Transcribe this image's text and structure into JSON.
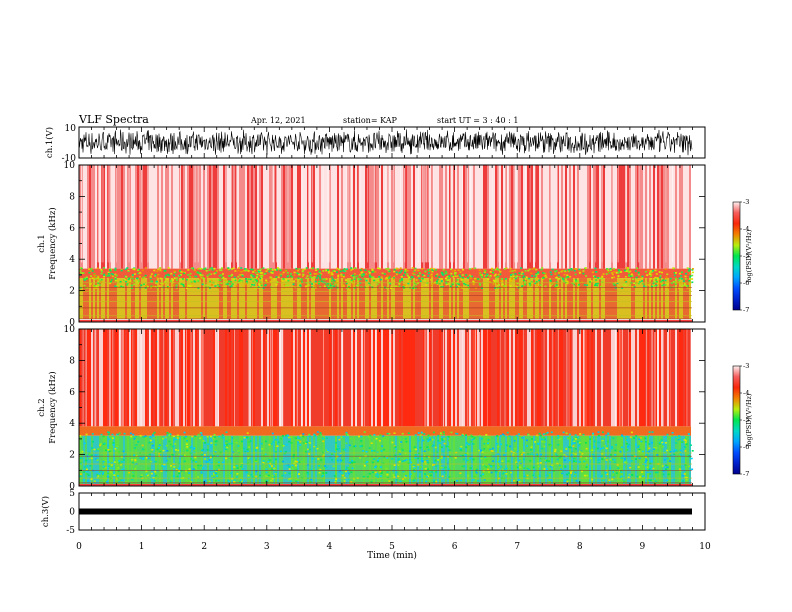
{
  "header": {
    "title": "VLF Spectra",
    "date": "Apr. 12, 2021",
    "station": "station= KAP",
    "start": "start  UT  =   3  : 40 : 1"
  },
  "chart_data": [
    {
      "type": "line",
      "panel": "ch1-waveform",
      "ylabel": "ch.1(V)",
      "ylim": [
        -10,
        10
      ],
      "yticks": [
        "10",
        "-10"
      ],
      "xlim": [
        0,
        10
      ]
    },
    {
      "type": "heatmap",
      "panel": "ch1-spectrogram",
      "ylabel": "ch.1",
      "ylabel2": "Frequency  (kHz)",
      "ylim": [
        0,
        10
      ],
      "yticks": [
        "0",
        "2",
        "4",
        "6",
        "8",
        "10"
      ],
      "xlim": [
        0,
        9.8
      ],
      "colorbar": {
        "label": "log(PSD)(V²/Hz)",
        "range": [
          -7,
          -3
        ],
        "ticks": [
          "-3",
          "-4",
          "-5",
          "-6",
          "-7"
        ]
      }
    },
    {
      "type": "heatmap",
      "panel": "ch2-spectrogram",
      "ylabel": "ch.2",
      "ylabel2": "Frequency  (kHz)",
      "ylim": [
        0,
        10
      ],
      "yticks": [
        "0",
        "2",
        "4",
        "6",
        "8",
        "10"
      ],
      "xlim": [
        0,
        9.8
      ],
      "colorbar": {
        "label": "log(PSD)(V²/Hz)",
        "range": [
          -7,
          -3
        ],
        "ticks": [
          "-3",
          "-4",
          "-5",
          "-6",
          "-7"
        ]
      }
    },
    {
      "type": "line",
      "panel": "ch3-waveform",
      "ylabel": "ch.3(V)",
      "ylim": [
        -5,
        5
      ],
      "yticks": [
        "5",
        "0",
        "-5"
      ],
      "xlim": [
        0,
        10
      ],
      "xlabel": "Time  (min)",
      "xticks": [
        "0",
        "1",
        "2",
        "3",
        "4",
        "5",
        "6",
        "7",
        "8",
        "9",
        "10"
      ]
    }
  ]
}
